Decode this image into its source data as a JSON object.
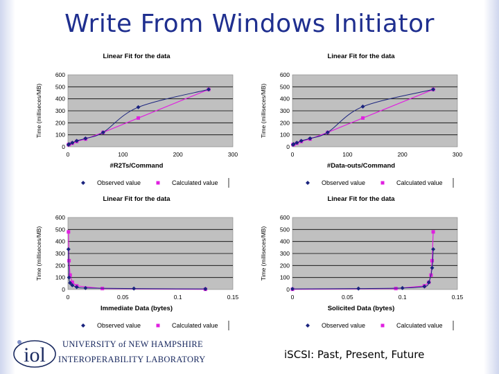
{
  "slide": {
    "title": "Write From Windows Initiator",
    "subtitle": "iSCSI: Past, Present, Future",
    "institution_line1": "UNIVERSITY of NEW HAMPSHIRE",
    "institution_line2": "INTEROPERABILITY LABORATORY",
    "logo_text": "iol"
  },
  "colors": {
    "title": "#1f2f8f",
    "plot_bg": "#c0c0c0",
    "observed": "#1a237e",
    "calculated": "#e020e0"
  },
  "chart_data": [
    {
      "type": "line",
      "title": "Linear Fit for the data",
      "xlabel": "#R2Ts/Command",
      "ylabel": "Time (milliseces/MB)",
      "xlim": [
        0,
        300
      ],
      "ylim": [
        0,
        600
      ],
      "xticks": [
        "0",
        "100",
        "200",
        "300"
      ],
      "yticks": [
        "0",
        "100",
        "200",
        "300",
        "400",
        "500",
        "600"
      ],
      "grid": true,
      "legend": "bottom",
      "series": [
        {
          "name": "Observed value",
          "style": "observed",
          "x": [
            1,
            2,
            8,
            16,
            32,
            64,
            128,
            256
          ],
          "y": [
            18,
            22,
            34,
            50,
            70,
            120,
            330,
            478
          ]
        },
        {
          "name": "Calculated value",
          "style": "calculated",
          "x": [
            1,
            2,
            8,
            16,
            32,
            64,
            128,
            256
          ],
          "y": [
            18,
            20,
            30,
            45,
            65,
            120,
            240,
            478
          ]
        }
      ]
    },
    {
      "type": "line",
      "title": "Linear Fit for the data",
      "xlabel": "#Data-outs/Command",
      "ylabel": "Time (milliseces/MB)",
      "xlim": [
        0,
        300
      ],
      "ylim": [
        0,
        600
      ],
      "xticks": [
        "0",
        "100",
        "200",
        "300"
      ],
      "yticks": [
        "0",
        "100",
        "200",
        "300",
        "400",
        "500",
        "600"
      ],
      "grid": true,
      "legend": "bottom",
      "series": [
        {
          "name": "Observed value",
          "style": "observed",
          "x": [
            1,
            2,
            8,
            16,
            32,
            64,
            128,
            256
          ],
          "y": [
            18,
            22,
            34,
            50,
            70,
            120,
            335,
            478
          ]
        },
        {
          "name": "Calculated value",
          "style": "calculated",
          "x": [
            1,
            2,
            8,
            16,
            32,
            64,
            128,
            256
          ],
          "y": [
            18,
            20,
            30,
            45,
            65,
            120,
            240,
            478
          ]
        }
      ]
    },
    {
      "type": "line",
      "title": "Linear Fit for the data",
      "xlabel": "Immediate Data (bytes)",
      "ylabel": "Time (milliseces/MB)",
      "xlim": [
        0,
        0.15
      ],
      "ylim": [
        0,
        600
      ],
      "xticks": [
        "0",
        "0.05",
        "0.1",
        "0.15"
      ],
      "yticks": [
        "0",
        "100",
        "200",
        "300",
        "400",
        "500",
        "600"
      ],
      "grid": true,
      "legend": "bottom",
      "series": [
        {
          "name": "Observed value",
          "style": "observed",
          "x": [
            0.0005,
            0.001,
            0.002,
            0.004,
            0.008,
            0.016,
            0.06,
            0.125
          ],
          "y": [
            335,
            100,
            55,
            35,
            20,
            12,
            8,
            5
          ]
        },
        {
          "name": "Calculated value",
          "style": "calculated",
          "x": [
            0.0005,
            0.001,
            0.002,
            0.004,
            0.008,
            0.0313,
            0.125
          ],
          "y": [
            480,
            240,
            120,
            60,
            30,
            8,
            2
          ]
        }
      ]
    },
    {
      "type": "line",
      "title": "Linear Fit for the data",
      "xlabel": "Solicited Data (bytes)",
      "ylabel": "Time (milliseces/MB)",
      "xlim": [
        0,
        0.15
      ],
      "ylim": [
        0,
        600
      ],
      "xticks": [
        "0",
        "0.05",
        "0.1",
        "0.15"
      ],
      "yticks": [
        "0",
        "100",
        "200",
        "300",
        "400",
        "500",
        "600"
      ],
      "grid": true,
      "legend": "bottom",
      "series": [
        {
          "name": "Observed value",
          "style": "observed",
          "x": [
            0,
            0.06,
            0.1,
            0.12,
            0.124,
            0.127,
            0.128
          ],
          "y": [
            5,
            8,
            12,
            25,
            60,
            180,
            335
          ]
        },
        {
          "name": "Calculated value",
          "style": "calculated",
          "x": [
            0,
            0.094,
            0.12,
            0.124,
            0.126,
            0.127,
            0.128
          ],
          "y": [
            2,
            8,
            30,
            60,
            120,
            240,
            480
          ]
        }
      ]
    }
  ]
}
